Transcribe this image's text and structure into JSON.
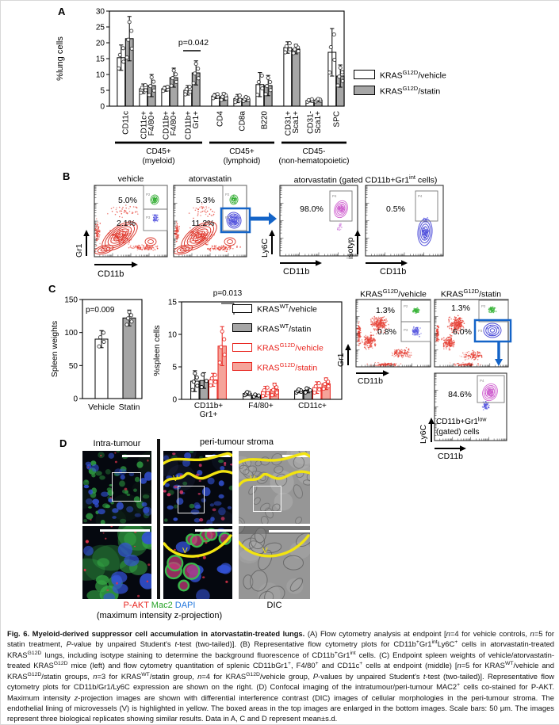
{
  "panel_a": {
    "label": "A",
    "legend": [
      {
        "pre": "KRAS",
        "sup": "G12D",
        "post": "/vehicle",
        "fill": "#ffffff",
        "stroke": "#000000",
        "text_color": "#000000"
      },
      {
        "pre": "KRAS",
        "sup": "G12D",
        "post": "/statin",
        "fill": "#a6a6a6",
        "stroke": "#000000",
        "text_color": "#000000"
      }
    ]
  },
  "panel_b": {
    "label": "B",
    "ylabel": "Gr1",
    "xlabel": "CD11b",
    "vehicle": {
      "title": "vehicle",
      "pct_top": "5.0%",
      "pct_bottom": "2.1%",
      "gate_top": "P2",
      "gate_bottom": "P3"
    },
    "atorvastatin": {
      "title": "atorvastatin",
      "pct_top": "5.3%",
      "pct_bottom": "11.2%",
      "gate_top": "P2",
      "gate_bottom": "P3"
    },
    "gated_title": {
      "pre": "atorvastatin (gated CD11b+Gr1",
      "sup": "int",
      "post": " cells)"
    },
    "ly6c_plot": {
      "pct": "98.0%",
      "gate": "P4",
      "ylabel": "Ly6C",
      "xlabel": "CD11b"
    },
    "isotype_plot": {
      "pct": "0.5%",
      "gate": "P4",
      "ylabel": "isotyp",
      "xlabel": "CD11b"
    }
  },
  "panel_c": {
    "label": "C",
    "legend": [
      {
        "pre": "KRAS",
        "sup": "WT",
        "post": "/vehicle",
        "fill": "#ffffff",
        "stroke": "#000000",
        "text_color": "#000000"
      },
      {
        "pre": "KRAS",
        "sup": "WT",
        "post": "/statin",
        "fill": "#a6a6a6",
        "stroke": "#000000",
        "text_color": "#000000"
      },
      {
        "pre": "KRAS",
        "sup": "G12D",
        "post": "/vehicle",
        "fill": "#ffffff",
        "stroke": "#e8251f",
        "text_color": "#e8251f"
      },
      {
        "pre": "KRAS",
        "sup": "G12D",
        "post": "/statin",
        "fill": "#f5a49a",
        "stroke": "#e8251f",
        "text_color": "#e8251f"
      }
    ],
    "flow": {
      "ylabel": "Gr1",
      "xlabel": "CD11b",
      "vehicle_title": {
        "pre": "KRAS",
        "sup": "G12D",
        "post": "/vehicle"
      },
      "statin_title": {
        "pre": "KRAS",
        "sup": "G12D",
        "post": "/statin"
      },
      "vehicle": {
        "pct_top": "1.3%",
        "pct_bottom": "0.8%",
        "gate_top": "P2",
        "gate_bottom": "P3"
      },
      "statin": {
        "pct_top": "1.3%",
        "pct_bottom": "6.0%",
        "gate_top": "P2",
        "gate_bottom": "P3"
      },
      "gated": {
        "pct": "84.6%",
        "gate": "P4",
        "label_pre": "CD11b+Gr1",
        "label_sup": "low",
        "label_line2": "(gated) cells",
        "ylabel": "Ly6C",
        "xlabel": "CD11b"
      }
    }
  },
  "panel_d": {
    "label": "D",
    "intra_title": "Intra-tumour",
    "peri_title": "peri-tumour stroma",
    "stains": [
      {
        "t": "P-AKT",
        "color": "#e8251f"
      },
      {
        "t": "Mac2",
        "color": "#27a327"
      },
      {
        "t": "DAPI",
        "color": "#2277dd"
      }
    ],
    "projection_note": "(maximum intensity z-projection)",
    "dic_label": "DIC",
    "vessel_marker": "V",
    "vessel_color": "#f2e410"
  },
  "chart_data": [
    {
      "id": "lung_cells",
      "type": "bar",
      "ylabel": "%lung cells",
      "ylim": [
        0,
        30
      ],
      "yticks": [
        0,
        5,
        10,
        15,
        20,
        25,
        30
      ],
      "categories": [
        "CD11c",
        "CD11c+ F4/80+",
        "CD11b+ F4/80+",
        "CD11b+ Gr1+",
        "CD4",
        "CD8a",
        "B220",
        "CD31+ Sca1+",
        "CD31- Sca1+",
        "SPC"
      ],
      "category_lines": [
        [
          "CD11c"
        ],
        [
          "CD11c+",
          "F4/80+"
        ],
        [
          "CD11b+",
          "F4/80+"
        ],
        [
          "CD11b+",
          "Gr1+"
        ],
        [
          "CD4"
        ],
        [
          "CD8a"
        ],
        [
          "B220"
        ],
        [
          "CD31+",
          "Sca1+"
        ],
        [
          "CD31-",
          "Sca1+"
        ],
        [
          "SPC"
        ]
      ],
      "blocks": [
        {
          "label": "CD45+",
          "sub": "(myeloid)",
          "span": [
            0,
            3
          ]
        },
        {
          "label": "CD45+",
          "sub": "(lymphoid)",
          "span": [
            4,
            6
          ]
        },
        {
          "label": "CD45-",
          "sub": "(non-hematopoietic)",
          "span": [
            7,
            9
          ]
        }
      ],
      "series": [
        {
          "name": "KRASG12D/vehicle",
          "fill": "#ffffff",
          "stroke": "#000000",
          "n": 4,
          "values": [
            15.3,
            5.5,
            5.5,
            5.0,
            3.2,
            2.4,
            6.8,
            18.5,
            1.8,
            17.0
          ],
          "errors": [
            4.0,
            1.5,
            0.8,
            1.5,
            0.8,
            1.3,
            3.8,
            1.8,
            0.5,
            7.5
          ]
        },
        {
          "name": "KRASG12D/statin",
          "fill": "#a6a6a6",
          "stroke": "#000000",
          "n": 5,
          "values": [
            21.3,
            6.5,
            9.0,
            10.5,
            3.0,
            2.3,
            6.5,
            18.0,
            1.9,
            9.5
          ],
          "errors": [
            7.0,
            3.5,
            3.0,
            3.8,
            1.2,
            0.8,
            3.2,
            1.5,
            0.5,
            3.5
          ]
        }
      ],
      "pvalue": {
        "text": "p=0.042",
        "category": 3
      }
    },
    {
      "id": "spleen_weights",
      "type": "bar",
      "ylabel": "Spleen weights",
      "ylim": [
        0,
        150
      ],
      "yticks": [
        0,
        50,
        100,
        150
      ],
      "categories": [
        "Vehicle",
        "Statin"
      ],
      "values": [
        90,
        122
      ],
      "errors": [
        13,
        12
      ],
      "fills": [
        "#ffffff",
        "#a6a6a6"
      ],
      "n": [
        4,
        5
      ],
      "pvalue": {
        "text": "p=0.009"
      }
    },
    {
      "id": "spleen_cells",
      "type": "bar",
      "ylabel": "%spleen cells",
      "ylim": [
        0,
        15
      ],
      "yticks": [
        0,
        5,
        10,
        15
      ],
      "categories": [
        "CD11b+ Gr1+",
        "F4/80+",
        "CD11c+"
      ],
      "category_lines": [
        [
          "CD11b+",
          "Gr1+"
        ],
        [
          "F4/80+"
        ],
        [
          "CD11c+"
        ]
      ],
      "series": [
        {
          "name": "KRASWT/vehicle",
          "fill": "#ffffff",
          "stroke": "#000000",
          "n": 5,
          "values": [
            2.8,
            0.9,
            1.3
          ],
          "errors": [
            1.6,
            0.3,
            0.3
          ]
        },
        {
          "name": "KRASWT/statin",
          "fill": "#a6a6a6",
          "stroke": "#000000",
          "n": 3,
          "values": [
            2.9,
            0.6,
            1.4
          ],
          "errors": [
            1.2,
            0.2,
            0.4
          ]
        },
        {
          "name": "KRASG12D/vehicle",
          "fill": "#ffffff",
          "stroke": "#e8251f",
          "n": 4,
          "values": [
            3.0,
            1.2,
            1.8
          ],
          "errors": [
            1.0,
            0.8,
            0.9
          ]
        },
        {
          "name": "KRASG12D/statin",
          "fill": "#f5a49a",
          "stroke": "#e8251f",
          "n": 5,
          "values": [
            8.2,
            1.5,
            2.4
          ],
          "errors": [
            3.0,
            1.0,
            0.9
          ]
        }
      ],
      "pvalue": {
        "text": "p=0.013"
      }
    }
  ],
  "caption": {
    "runs": [
      {
        "t": "Fig. 6. Myeloid-derived suppressor cell accumulation in atorvastatin-treated lungs. ",
        "b": 1
      },
      {
        "t": "(A) Flow cytometry analysis at endpoint ["
      },
      {
        "t": "n",
        "i": 1
      },
      {
        "t": "=4 for vehicle controls, "
      },
      {
        "t": "n",
        "i": 1
      },
      {
        "t": "=5 for statin treatment, "
      },
      {
        "t": "P",
        "i": 1
      },
      {
        "t": "-value by unpaired Student's "
      },
      {
        "t": "t",
        "i": 1
      },
      {
        "t": "-test (two-tailed)]. (B) Representative flow cytometry plots for CD11b"
      },
      {
        "t": "+",
        "sup": 1
      },
      {
        "t": "Gr1"
      },
      {
        "t": "int",
        "sup": 1
      },
      {
        "t": "Ly6C"
      },
      {
        "t": "+",
        "sup": 1
      },
      {
        "t": " cells in atorvastatin-treated KRAS"
      },
      {
        "t": "G12D",
        "sup": 1
      },
      {
        "t": " lungs, including isotype staining to determine the background fluorescence of CD11b"
      },
      {
        "t": "+",
        "sup": 1
      },
      {
        "t": "Gr1"
      },
      {
        "t": "int",
        "sup": 1
      },
      {
        "t": " cells. (C) Endpoint spleen weights of vehicle/atorvastatin-treated KRAS"
      },
      {
        "t": "G12D",
        "sup": 1
      },
      {
        "t": " mice (left) and flow cytometry quantitation of splenic CD11bGr1"
      },
      {
        "t": "+",
        "sup": 1
      },
      {
        "t": ", F4/80"
      },
      {
        "t": "+",
        "sup": 1
      },
      {
        "t": " and CD11c"
      },
      {
        "t": "+",
        "sup": 1
      },
      {
        "t": " cells at endpoint (middle) ["
      },
      {
        "t": "n",
        "i": 1
      },
      {
        "t": "=5 for KRAS"
      },
      {
        "t": "WT",
        "sup": 1
      },
      {
        "t": "/vehicle and KRAS"
      },
      {
        "t": "G12D",
        "sup": 1
      },
      {
        "t": "/statin groups, "
      },
      {
        "t": "n",
        "i": 1
      },
      {
        "t": "=3 for KRAS"
      },
      {
        "t": "WT",
        "sup": 1
      },
      {
        "t": "/statin group, "
      },
      {
        "t": "n",
        "i": 1
      },
      {
        "t": "=4 for KRAS"
      },
      {
        "t": "G12D",
        "sup": 1
      },
      {
        "t": "/vehicle group, "
      },
      {
        "t": "P",
        "i": 1
      },
      {
        "t": "-values by unpaired Student's "
      },
      {
        "t": "t",
        "i": 1
      },
      {
        "t": "-test (two-tailed)]. Representative flow cytometry plots for CD11b/Gr1/Ly6C expression are shown on the right. (D) Confocal imaging of the intratumour/peri-tumour MAC2"
      },
      {
        "t": "+",
        "sup": 1
      },
      {
        "t": " cells co-stained for P-AKT. Maximum intensity "
      },
      {
        "t": "z",
        "i": 1
      },
      {
        "t": "-projection images are shown with differential interference contrast (DIC) images of cellular morphologies in the peri-tumour stroma. The endothelial lining of microvessels (V) is highlighted in yellow. The boxed areas in the top images are enlarged in the bottom images. Scale bars: 50 μm. The images represent three biological replicates showing similar results. Data in A, C and D represent mean±s.d."
      }
    ]
  }
}
